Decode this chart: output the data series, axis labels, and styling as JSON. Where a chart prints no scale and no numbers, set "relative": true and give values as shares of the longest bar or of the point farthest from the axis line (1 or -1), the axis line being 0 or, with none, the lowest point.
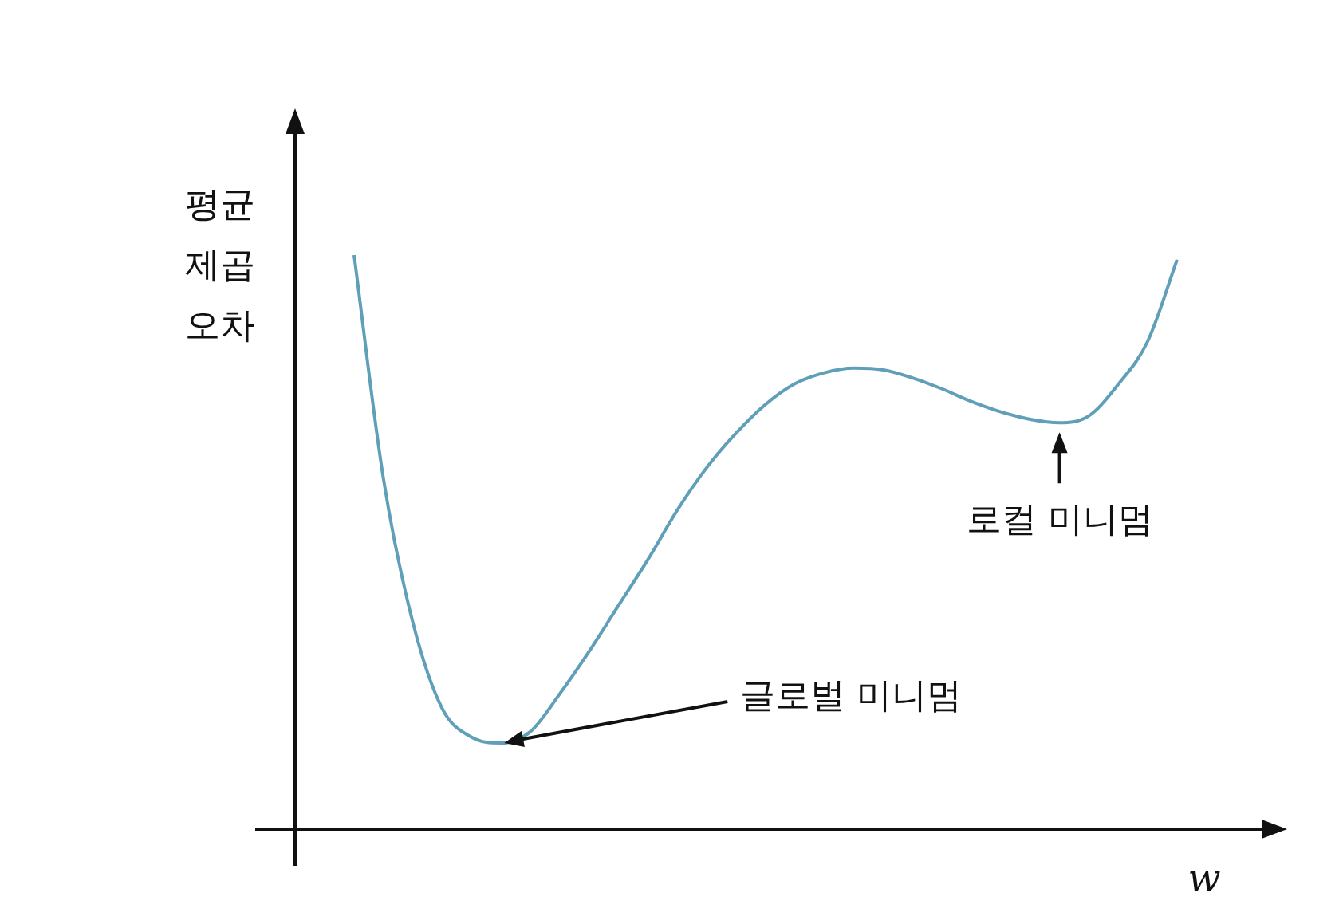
{
  "chart_data": {
    "type": "line",
    "relative": true,
    "ylabel": "평균 제곱 오차",
    "xlabel": "w",
    "categories": [
      null,
      null,
      null,
      null,
      null,
      null,
      null,
      null,
      null,
      null,
      null,
      null,
      null,
      null,
      null,
      null,
      null,
      null,
      null,
      null,
      null,
      null,
      null,
      null,
      null,
      null,
      null,
      null,
      null
    ],
    "series": [
      {
        "color": "#5f9fb8",
        "values": [
          1.0,
          0.61,
          0.36,
          0.21,
          0.16,
          0.15,
          0.17,
          0.236,
          0.31,
          0.39,
          0.47,
          0.556,
          0.63,
          0.69,
          0.74,
          0.776,
          0.795,
          0.803,
          0.8,
          0.786,
          0.767,
          0.745,
          0.727,
          0.714,
          0.708,
          0.72,
          0.775,
          0.85,
          0.992
        ]
      }
    ],
    "annotations": [
      {
        "text": "로컬 미니멈",
        "y": 0.708
      },
      "글로벌 미니멈"
    ],
    "marker": "none",
    "line_style": "solid",
    "legend": false
  }
}
